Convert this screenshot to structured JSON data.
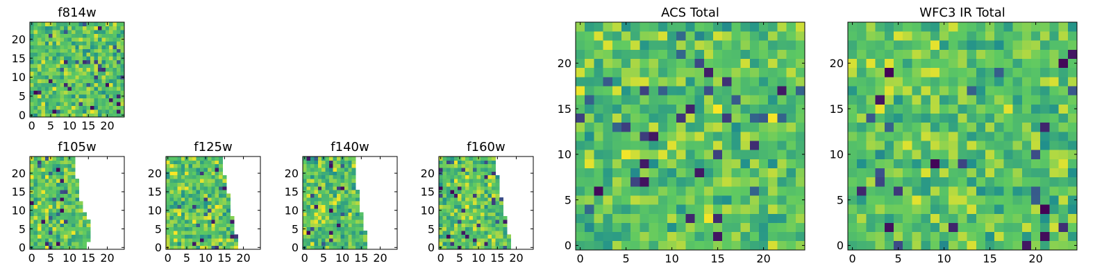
{
  "chart_data": [
    {
      "id": "f814w",
      "type": "heatmap",
      "title": "f814w",
      "xlim": [
        0,
        25
      ],
      "ylim": [
        0,
        25
      ],
      "xticks": [
        0,
        5,
        10,
        15,
        20
      ],
      "yticks": [
        0,
        5,
        10,
        15,
        20
      ],
      "grid": "25x25",
      "colormap": "viridis",
      "coverage": "full",
      "seed": 814
    },
    {
      "id": "f105w",
      "type": "heatmap",
      "title": "f105w",
      "xlim": [
        0,
        25
      ],
      "ylim": [
        0,
        25
      ],
      "xticks": [
        0,
        5,
        10,
        15,
        20
      ],
      "yticks": [
        0,
        5,
        10,
        15,
        20
      ],
      "grid": "25x25",
      "colormap": "viridis",
      "coverage": "partial",
      "row_extent": [
        15,
        15,
        16,
        16,
        16,
        16,
        16,
        16,
        15,
        15,
        14,
        14,
        14,
        13,
        13,
        13,
        13,
        13,
        13,
        12,
        12,
        12,
        12,
        12,
        12
      ],
      "seed": 105
    },
    {
      "id": "f125w",
      "type": "heatmap",
      "title": "f125w",
      "xlim": [
        0,
        25
      ],
      "ylim": [
        0,
        25
      ],
      "xticks": [
        0,
        5,
        10,
        15,
        20
      ],
      "yticks": [
        0,
        5,
        10,
        15,
        20
      ],
      "grid": "25x25",
      "colormap": "viridis",
      "coverage": "partial",
      "row_extent": [
        19,
        19,
        19,
        19,
        18,
        18,
        18,
        18,
        18,
        17,
        17,
        17,
        17,
        17,
        17,
        16,
        16,
        16,
        16,
        16,
        15,
        15,
        15,
        15,
        15
      ],
      "seed": 125
    },
    {
      "id": "f140w",
      "type": "heatmap",
      "title": "f140w",
      "xlim": [
        0,
        25
      ],
      "ylim": [
        0,
        25
      ],
      "xticks": [
        0,
        5,
        10,
        15,
        20
      ],
      "yticks": [
        0,
        5,
        10,
        15,
        20
      ],
      "grid": "25x25",
      "colormap": "viridis",
      "coverage": "partial",
      "row_extent": [
        17,
        17,
        17,
        17,
        17,
        16,
        16,
        16,
        16,
        16,
        15,
        15,
        15,
        15,
        15,
        15,
        14,
        14,
        14,
        14,
        14,
        14,
        14,
        14,
        14
      ],
      "seed": 140
    },
    {
      "id": "f160w",
      "type": "heatmap",
      "title": "f160w",
      "xlim": [
        0,
        25
      ],
      "ylim": [
        0,
        25
      ],
      "xticks": [
        0,
        5,
        10,
        15,
        20
      ],
      "yticks": [
        0,
        5,
        10,
        15,
        20
      ],
      "grid": "25x25",
      "colormap": "viridis",
      "coverage": "partial",
      "row_extent": [
        19,
        19,
        19,
        19,
        18,
        18,
        18,
        18,
        18,
        17,
        17,
        17,
        17,
        17,
        16,
        16,
        16,
        16,
        16,
        16,
        15,
        15,
        15,
        15,
        15
      ],
      "seed": 160
    },
    {
      "id": "acs_total",
      "type": "heatmap",
      "title": "ACS Total",
      "xlim": [
        0,
        25
      ],
      "ylim": [
        0,
        25
      ],
      "xticks": [
        0,
        5,
        10,
        15,
        20
      ],
      "yticks": [
        0,
        5,
        10,
        15,
        20
      ],
      "grid": "25x25",
      "colormap": "viridis",
      "coverage": "full",
      "seed": 2001
    },
    {
      "id": "wfc3_ir_total",
      "type": "heatmap",
      "title": "WFC3 IR Total",
      "xlim": [
        0,
        25
      ],
      "ylim": [
        0,
        25
      ],
      "xticks": [
        0,
        5,
        10,
        15,
        20
      ],
      "yticks": [
        0,
        5,
        10,
        15,
        20
      ],
      "grid": "25x25",
      "colormap": "viridis",
      "coverage": "full",
      "seed": 3003
    }
  ],
  "colors": {
    "viridis_stops": [
      "#440154",
      "#3b528b",
      "#21918c",
      "#5ec962",
      "#fde725"
    ]
  }
}
